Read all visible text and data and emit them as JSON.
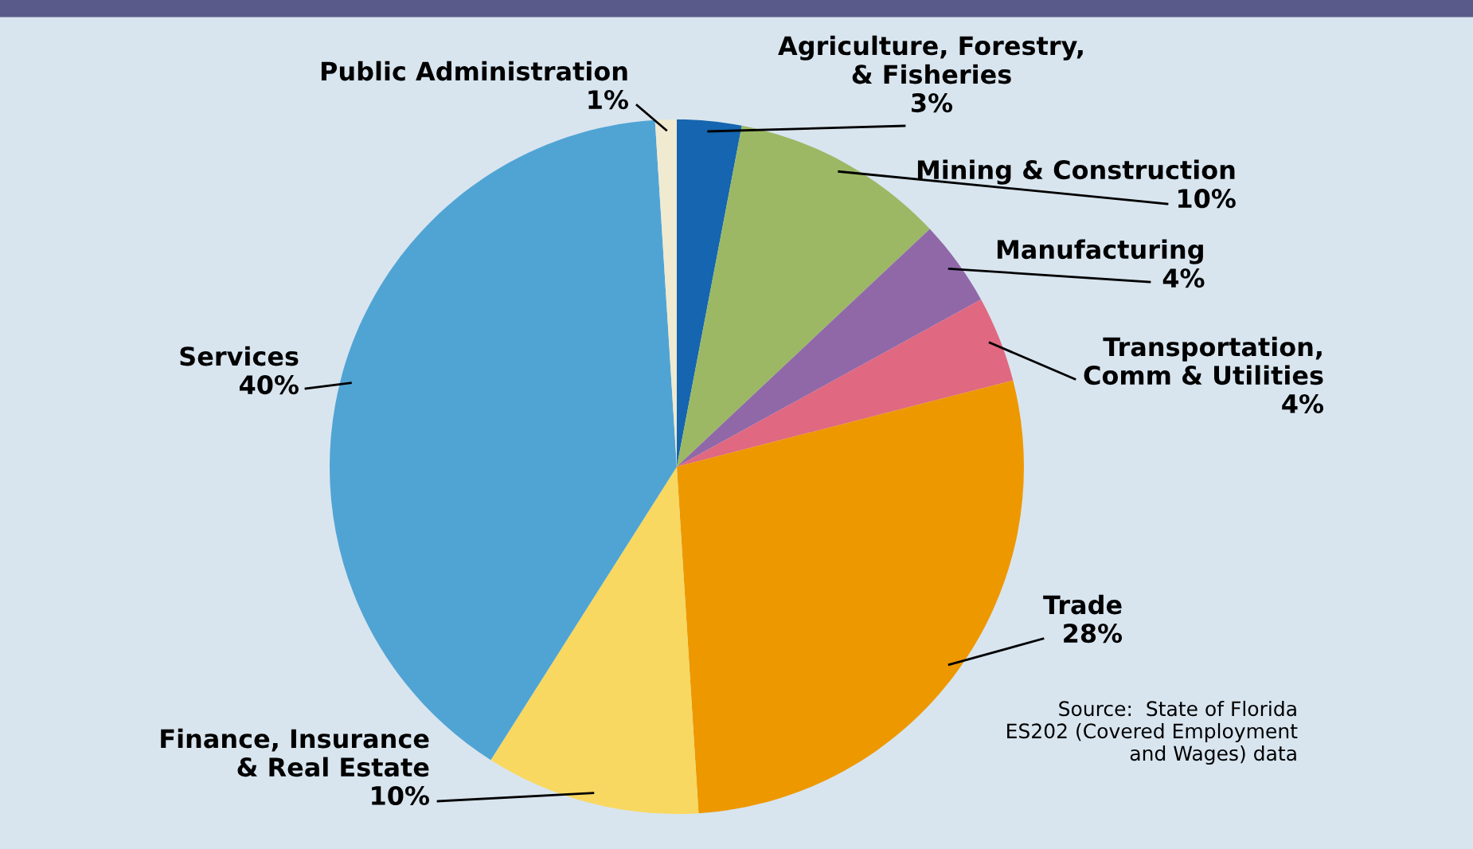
{
  "chart_data": {
    "type": "pie",
    "categories": [
      "Agriculture, Forestry,\n& Fisheries",
      "Mining & Construction",
      "Manufacturing",
      "Transportation,\nComm & Utilities",
      "Trade",
      "Finance, Insurance\n& Real Estate",
      "Services",
      "Public Administration"
    ],
    "values": [
      3,
      10,
      4,
      4,
      28,
      10,
      40,
      1
    ],
    "value_labels": [
      "3%",
      "10%",
      "4%",
      "4%",
      "28%",
      "10%",
      "40%",
      "1%"
    ],
    "colors": [
      "#1565b0",
      "#9cb865",
      "#9068a8",
      "#e06880",
      "#ee9800",
      "#f8d860",
      "#50a4d4",
      "#f0ead0"
    ],
    "annotations": [
      "Source:  State of Florida\nES202 (Covered Employment\nand Wages) data"
    ]
  }
}
